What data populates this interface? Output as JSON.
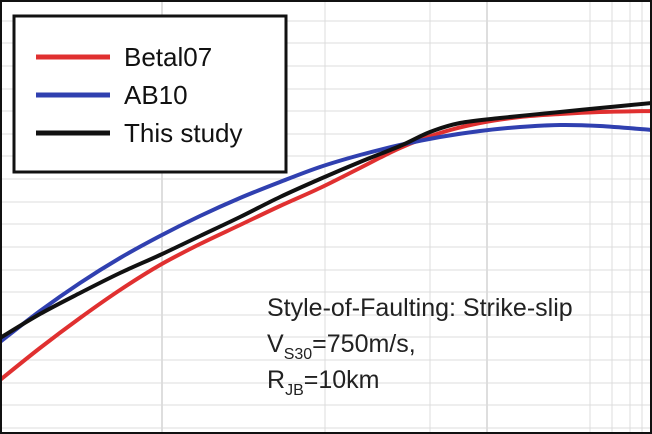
{
  "chart_data": {
    "type": "line",
    "title": "",
    "xlabel": "",
    "ylabel": "",
    "grid": true,
    "legend_placement": "top-left",
    "series": [
      {
        "name": "Betal07",
        "color": "#e03030",
        "points": [
          [
            0,
            380
          ],
          [
            40,
            348
          ],
          [
            80,
            318
          ],
          [
            120,
            290
          ],
          [
            160,
            265
          ],
          [
            200,
            244
          ],
          [
            240,
            225
          ],
          [
            280,
            206
          ],
          [
            320,
            188
          ],
          [
            360,
            168
          ],
          [
            400,
            148
          ],
          [
            440,
            133
          ],
          [
            480,
            123
          ],
          [
            520,
            117
          ],
          [
            560,
            114
          ],
          [
            600,
            112
          ],
          [
            652,
            111
          ]
        ]
      },
      {
        "name": "AB10",
        "color": "#3040b0",
        "points": [
          [
            0,
            342
          ],
          [
            40,
            311
          ],
          [
            80,
            283
          ],
          [
            120,
            258
          ],
          [
            160,
            236
          ],
          [
            200,
            216
          ],
          [
            240,
            198
          ],
          [
            280,
            182
          ],
          [
            320,
            167
          ],
          [
            360,
            155
          ],
          [
            400,
            145
          ],
          [
            440,
            137
          ],
          [
            480,
            131
          ],
          [
            520,
            127
          ],
          [
            560,
            125
          ],
          [
            600,
            126
          ],
          [
            652,
            130
          ]
        ]
      },
      {
        "name": "This study",
        "color": "#111111",
        "points": [
          [
            0,
            338
          ],
          [
            40,
            314
          ],
          [
            80,
            293
          ],
          [
            120,
            273
          ],
          [
            160,
            255
          ],
          [
            200,
            236
          ],
          [
            240,
            217
          ],
          [
            280,
            197
          ],
          [
            320,
            179
          ],
          [
            360,
            162
          ],
          [
            400,
            146
          ],
          [
            430,
            132
          ],
          [
            460,
            123
          ],
          [
            500,
            118
          ],
          [
            560,
            112
          ],
          [
            600,
            108
          ],
          [
            652,
            103
          ]
        ]
      }
    ]
  },
  "legend": {
    "items": [
      {
        "label": "Betal07",
        "color": "#e03030"
      },
      {
        "label": "AB10",
        "color": "#3040b0"
      },
      {
        "label": "This study",
        "color": "#111111"
      }
    ]
  },
  "annotation": {
    "line1": "Style-of-Faulting: Strike-slip",
    "line2_main": "V",
    "line2_sub": "S30",
    "line2_rest": "=750m/s,",
    "line3_main": "R",
    "line3_sub": "JB",
    "line3_rest": "=10km"
  }
}
